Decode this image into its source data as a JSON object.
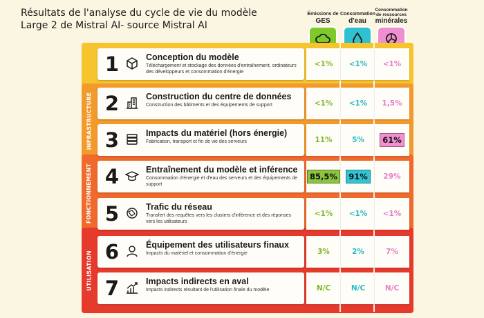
{
  "header": {
    "title_line1": "Résultats de l'analyse du cycle de vie du modèle",
    "title_line2": "Large 2 de Mistral AI- source Mistral AI"
  },
  "columns": [
    {
      "key": "ges",
      "label_small": "Émissions de",
      "label_big": "GES",
      "icon": "cloud-icon",
      "color": "#7fc92a"
    },
    {
      "key": "eau",
      "label_small": "Consommation",
      "label_big": "d'eau",
      "icon": "water-drop-icon",
      "color": "#2fc1cf"
    },
    {
      "key": "min",
      "label_small": "Consommation de ressources",
      "label_big": "minérales",
      "icon": "pie-chart-icon",
      "color": "#ee8fcf"
    }
  ],
  "bands": [
    {
      "name": "",
      "color": "#f6c42c"
    },
    {
      "name": "INFRASTRUCTURE",
      "color": "#f39a2c"
    },
    {
      "name": "FONCTIONNEMENT",
      "color": "#ef6a2c"
    },
    {
      "name": "UTILISATION",
      "color": "#e63a2c"
    }
  ],
  "rows": [
    {
      "num": "1",
      "icon": "cube-icon",
      "title": "Conception du modèle",
      "desc": "Téléchargement et stockage des données d'entraînement, ordinateurs des développeurs et consommation d'énergie",
      "ges": "<1%",
      "eau": "<1%",
      "min": "<1%"
    },
    {
      "num": "2",
      "icon": "building-icon",
      "title": "Construction du centre de données",
      "desc": "Construction des bâtiments et des équipements de support",
      "ges": "<1%",
      "eau": "<1%",
      "min": "1,5%"
    },
    {
      "num": "3",
      "icon": "server-icon",
      "title": "Impacts du matériel (hors énergie)",
      "desc": "Fabrication, transport et fin de vie des serveurs",
      "ges": "11%",
      "eau": "5%",
      "min": "61%"
    },
    {
      "num": "4",
      "icon": "graduation-cap-icon",
      "title": "Entraînement du modèle et inférence",
      "desc": "Consommation d'énergie et d'eau des serveurs et des équipements de support",
      "ges": "85,5%",
      "eau": "91%",
      "min": "29%"
    },
    {
      "num": "5",
      "icon": "network-icon",
      "title": "Trafic du réseau",
      "desc": "Transfert des requêtes vers les clusters d'inférence et des réponses vers les utilisateurs",
      "ges": "<1%",
      "eau": "<1%",
      "min": "<1%"
    },
    {
      "num": "6",
      "icon": "user-icon",
      "title": "Équipement des utilisateurs finaux",
      "desc": "Impacts du matériel et consommation d'énergie",
      "ges": "3%",
      "eau": "2%",
      "min": "7%"
    },
    {
      "num": "7",
      "icon": "chart-arrow-icon",
      "title": "Impacts indirects en aval",
      "desc": "Impacts indirects résultant de l'utilisation finale du modèle",
      "ges": "N/C",
      "eau": "N/C",
      "min": "N/C"
    }
  ],
  "highlights": {
    "ges_row4": "#8bc53f",
    "eau_row4": "#32c4d2",
    "min_row3": "#f28fd0"
  }
}
